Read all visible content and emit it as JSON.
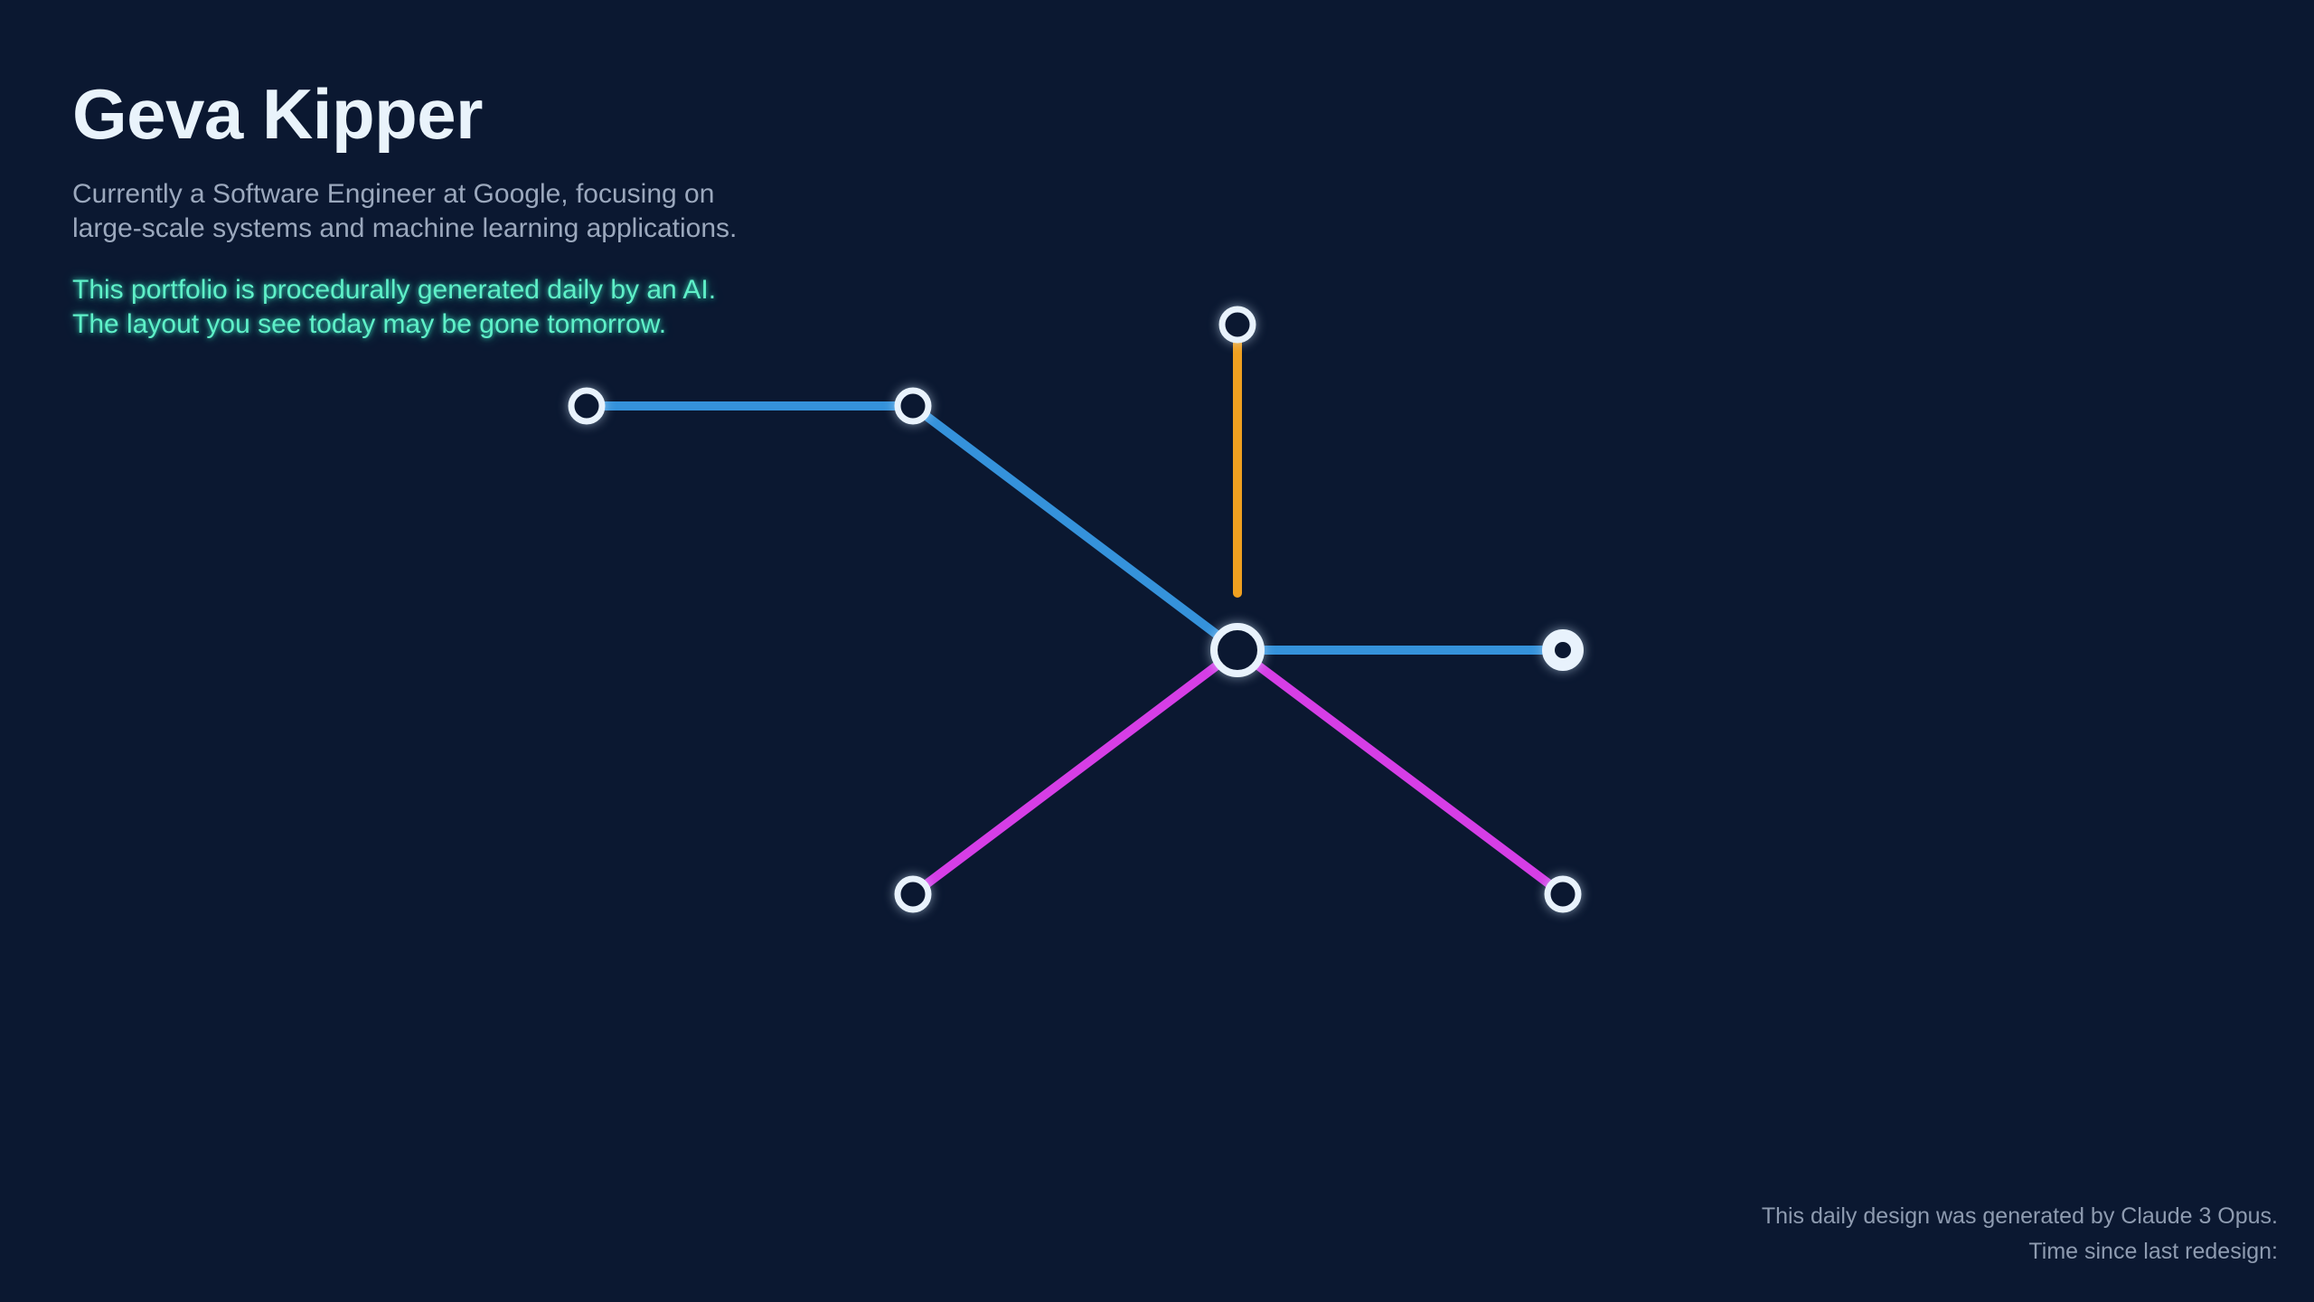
{
  "header": {
    "title": "Geva Kipper",
    "description_lines": [
      "Currently a Software Engineer at Google, focusing on",
      "large-scale systems and machine learning applications."
    ],
    "ai_note_lines": [
      "This portfolio is procedurally generated daily by an AI.",
      "The layout you see today may be gone tomorrow."
    ]
  },
  "graph": {
    "colors": {
      "blue": "#3592db",
      "orange": "#f0a020",
      "magenta": "#d63ee6",
      "node_stroke": "#e8f2fc",
      "node_fill": "#0b1831"
    }
  },
  "footer": {
    "generated_by": "This daily design was generated by Claude 3 Opus.",
    "time_since": "Time since last redesign:"
  }
}
